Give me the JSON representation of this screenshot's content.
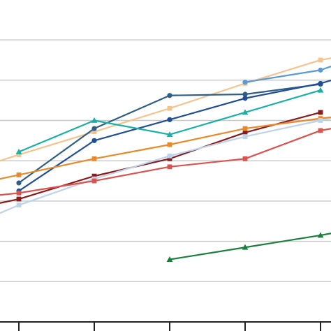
{
  "chart_data": {
    "type": "line",
    "title": "",
    "xlabel": "",
    "ylabel": "",
    "x": [
      1,
      2,
      3,
      4,
      5
    ],
    "xlim": [
      0.75,
      5.15
    ],
    "ylim": [
      0,
      8
    ],
    "gridlines_y": [
      1,
      2,
      3,
      4,
      5,
      6,
      7
    ],
    "grid": true,
    "legend": "none",
    "series": [
      {
        "color": "#f5c48e",
        "marker": "square",
        "points": [
          [
            0.75,
            4.0
          ],
          [
            1,
            4.15
          ],
          [
            2,
            4.72
          ],
          [
            3,
            5.3
          ],
          [
            4,
            5.92
          ],
          [
            5,
            6.5
          ],
          [
            5.15,
            6.55
          ]
        ]
      },
      {
        "color": "#5a9bd4",
        "marker": "circle",
        "points": [
          [
            4,
            5.95
          ],
          [
            5,
            6.25
          ],
          [
            5.15,
            6.35
          ]
        ]
      },
      {
        "color": "#2e5f87",
        "marker": "circle",
        "points": [
          [
            1,
            3.45
          ],
          [
            2,
            4.8
          ],
          [
            3,
            5.62
          ],
          [
            4,
            5.65
          ],
          [
            5,
            5.9
          ]
        ]
      },
      {
        "color": "#1f4e96",
        "marker": "circle",
        "points": [
          [
            1,
            3.25
          ],
          [
            2,
            4.5
          ],
          [
            3,
            5.02
          ],
          [
            4,
            5.55
          ],
          [
            5,
            5.92
          ],
          [
            5.15,
            6.0
          ]
        ]
      },
      {
        "color": "#1ab0a6",
        "marker": "triangle",
        "points": [
          [
            1,
            4.22
          ],
          [
            2,
            5.0
          ],
          [
            3,
            4.65
          ],
          [
            4,
            5.2
          ],
          [
            5,
            5.75
          ]
        ]
      },
      {
        "color": "#8b1a1a",
        "marker": "square",
        "points": [
          [
            0.75,
            2.95
          ],
          [
            1,
            3.05
          ],
          [
            2,
            3.62
          ],
          [
            3,
            4.05
          ],
          [
            4,
            4.7
          ],
          [
            5,
            5.2
          ]
        ]
      },
      {
        "color": "#e88a2b",
        "marker": "square",
        "points": [
          [
            0.75,
            3.55
          ],
          [
            1,
            3.65
          ],
          [
            2,
            4.05
          ],
          [
            3,
            4.4
          ],
          [
            4,
            4.8
          ],
          [
            5,
            5.05
          ],
          [
            5.15,
            5.08
          ]
        ]
      },
      {
        "color": "#bcd3ea",
        "marker": "square",
        "points": [
          [
            0.75,
            2.7
          ],
          [
            1,
            2.9
          ],
          [
            2,
            3.55
          ],
          [
            3,
            4.12
          ],
          [
            4,
            4.6
          ],
          [
            5,
            5.0
          ],
          [
            5.15,
            5.05
          ]
        ]
      },
      {
        "color": "#d9534f",
        "marker": "square",
        "points": [
          [
            0.75,
            3.15
          ],
          [
            1,
            3.2
          ],
          [
            2,
            3.5
          ],
          [
            3,
            3.85
          ],
          [
            4,
            4.05
          ],
          [
            5,
            4.75
          ],
          [
            5.15,
            4.8
          ]
        ]
      },
      {
        "color": "#1a7f3c",
        "marker": "triangle",
        "points": [
          [
            3,
            1.55
          ],
          [
            4,
            1.85
          ],
          [
            5,
            2.15
          ],
          [
            5.15,
            2.2
          ]
        ]
      }
    ]
  }
}
